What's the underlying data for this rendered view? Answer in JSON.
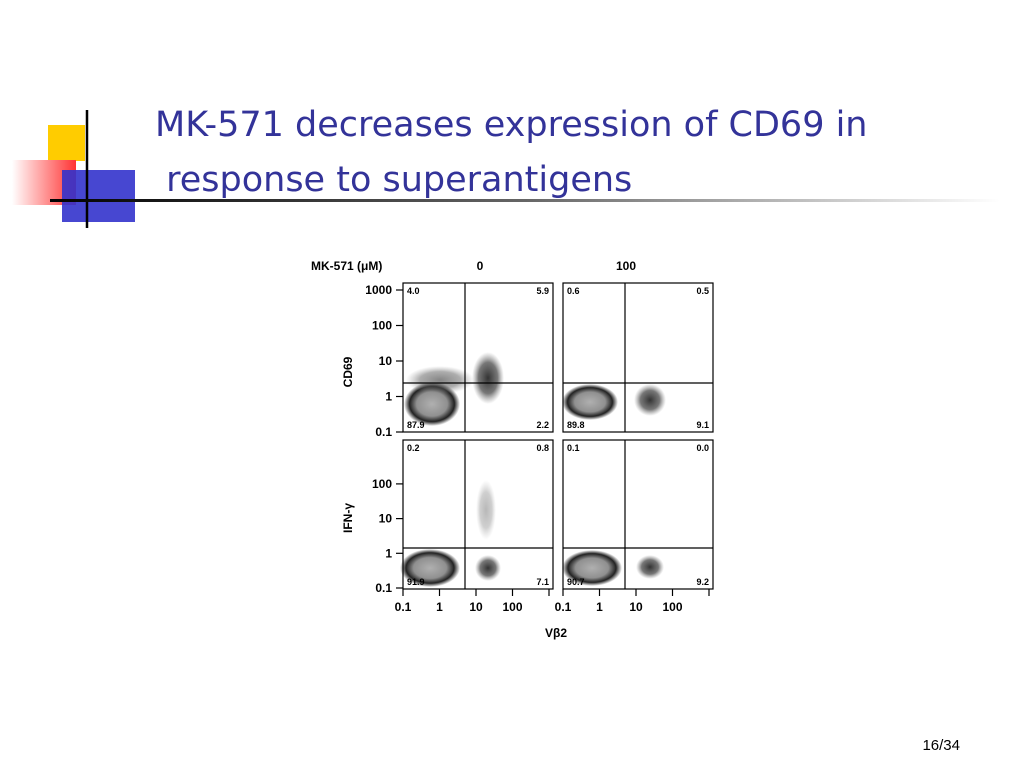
{
  "title": "MK-571 decreases expression of CD69 in response to superantigens",
  "figure": {
    "header": {
      "label": "MK-571 (μM)",
      "columns": [
        "0",
        "100"
      ]
    },
    "row_labels": [
      "CD69",
      "IFN-γ"
    ],
    "y_ticks": [
      [
        "1000",
        "100",
        "10",
        "1",
        "0.1"
      ],
      [
        "100",
        "10",
        "1",
        "0.1"
      ]
    ],
    "x_ticks": [
      "0.1",
      "1",
      "10",
      "100"
    ],
    "x_label": "Vβ2",
    "panels": [
      {
        "ul": "4.0",
        "ur": "5.9",
        "ll": "87.9",
        "lr": "2.2"
      },
      {
        "ul": "0.6",
        "ur": "0.5",
        "ll": "89.8",
        "lr": "9.1"
      },
      {
        "ul": "0.2",
        "ur": "0.8",
        "ll": "91.9",
        "lr": "7.1"
      },
      {
        "ul": "0.1",
        "ur": "0.0",
        "ll": "90.7",
        "lr": "9.2"
      }
    ]
  },
  "page_number": "16/34"
}
